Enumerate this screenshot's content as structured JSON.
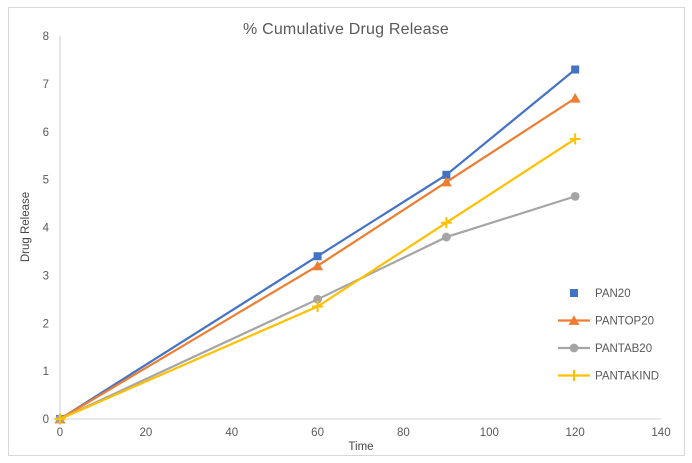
{
  "chart_data": {
    "type": "line",
    "title": "% Cumulative Drug Release",
    "xlabel": "Time",
    "ylabel": "Drug Release",
    "x": [
      0,
      60,
      90,
      120
    ],
    "xlim": [
      0,
      140
    ],
    "ylim": [
      0,
      8
    ],
    "x_ticks": [
      0,
      20,
      40,
      60,
      80,
      100,
      120,
      140
    ],
    "y_ticks": [
      0,
      1,
      2,
      3,
      4,
      5,
      6,
      7,
      8
    ],
    "grid": false,
    "legend_position": "inside-right",
    "series": [
      {
        "name": "PAN20",
        "color": "#4472C4",
        "marker": "square",
        "legend_line": false,
        "values": [
          0,
          3.4,
          5.1,
          7.3
        ]
      },
      {
        "name": "PANTOP20",
        "color": "#ED7D31",
        "marker": "triangle",
        "legend_line": true,
        "values": [
          0,
          3.2,
          4.95,
          6.7
        ]
      },
      {
        "name": "PANTAB20",
        "color": "#A5A5A5",
        "marker": "circle",
        "legend_line": true,
        "values": [
          0,
          2.5,
          3.8,
          4.65
        ]
      },
      {
        "name": "PANTAKIND",
        "color": "#FFC000",
        "marker": "plus",
        "legend_line": true,
        "values": [
          0,
          2.35,
          4.1,
          5.85
        ]
      }
    ],
    "colors": {
      "axis_line": "#d9d9d9",
      "tick_label": "#595959",
      "title": "#595959",
      "figure_border": "#d7d7d7"
    }
  }
}
